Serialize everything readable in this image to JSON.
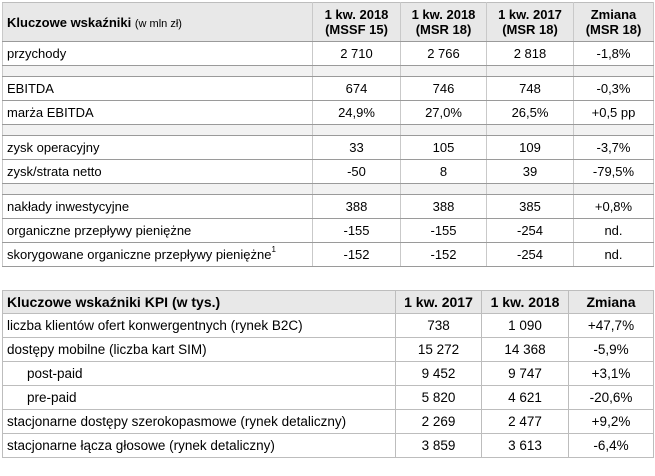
{
  "table1": {
    "title": "Kluczowe wskaźniki",
    "title_unit": "(w mln zł)",
    "columns": [
      {
        "line1": "1 kw. 2018",
        "line2": "(MSSF 15)"
      },
      {
        "line1": "1 kw. 2018",
        "line2": "(MSR 18)"
      },
      {
        "line1": "1 kw. 2017",
        "line2": "(MSR 18)"
      },
      {
        "line1": "Zmiana",
        "line2": "(MSR 18)"
      }
    ],
    "rows": [
      {
        "label": "przychody",
        "v1": "2 710",
        "v2": "2 766",
        "v3": "2 818",
        "v4": "-1,8%"
      },
      {
        "label": "EBITDA",
        "v1": "674",
        "v2": "746",
        "v3": "748",
        "v4": "-0,3%"
      },
      {
        "label": "marża EBITDA",
        "v1": "24,9%",
        "v2": "27,0%",
        "v3": "26,5%",
        "v4": "+0,5 pp"
      },
      {
        "label": "zysk operacyjny",
        "v1": "33",
        "v2": "105",
        "v3": "109",
        "v4": "-3,7%"
      },
      {
        "label": "zysk/strata netto",
        "v1": "-50",
        "v2": "8",
        "v3": "39",
        "v4": "-79,5%"
      },
      {
        "label": "nakłady inwestycyjne",
        "v1": "388",
        "v2": "388",
        "v3": "385",
        "v4": "+0,8%"
      },
      {
        "label": "organiczne przepływy pieniężne",
        "v1": "-155",
        "v2": "-155",
        "v3": "-254",
        "v4": "nd."
      },
      {
        "label": "skorygowane organiczne przepływy pieniężne",
        "footnote": "1",
        "v1": "-152",
        "v2": "-152",
        "v3": "-254",
        "v4": "nd."
      }
    ]
  },
  "table2": {
    "title": "Kluczowe wskaźniki KPI (w tys.)",
    "columns": [
      "1 kw. 2017",
      "1 kw. 2018",
      "Zmiana"
    ],
    "rows": [
      {
        "label": "liczba klientów ofert konwergentnych (rynek B2C)",
        "v1": "738",
        "v2": "1 090",
        "v3": "+47,7%"
      },
      {
        "label": "dostępy mobilne (liczba kart SIM)",
        "v1": "15 272",
        "v2": "14 368",
        "v3": "-5,9%"
      },
      {
        "label": "post-paid",
        "v1": "9 452",
        "v2": "9 747",
        "v3": "+3,1%"
      },
      {
        "label": "pre-paid",
        "v1": "5 820",
        "v2": "4 621",
        "v3": "-20,6%"
      },
      {
        "label": "stacjonarne dostępy szerokopasmowe (rynek detaliczny)",
        "v1": "2 269",
        "v2": "2 477",
        "v3": "+9,2%"
      },
      {
        "label": "stacjonarne łącza głosowe (rynek detaliczny)",
        "v1": "3 859",
        "v2": "3 613",
        "v3": "-6,4%"
      }
    ]
  }
}
